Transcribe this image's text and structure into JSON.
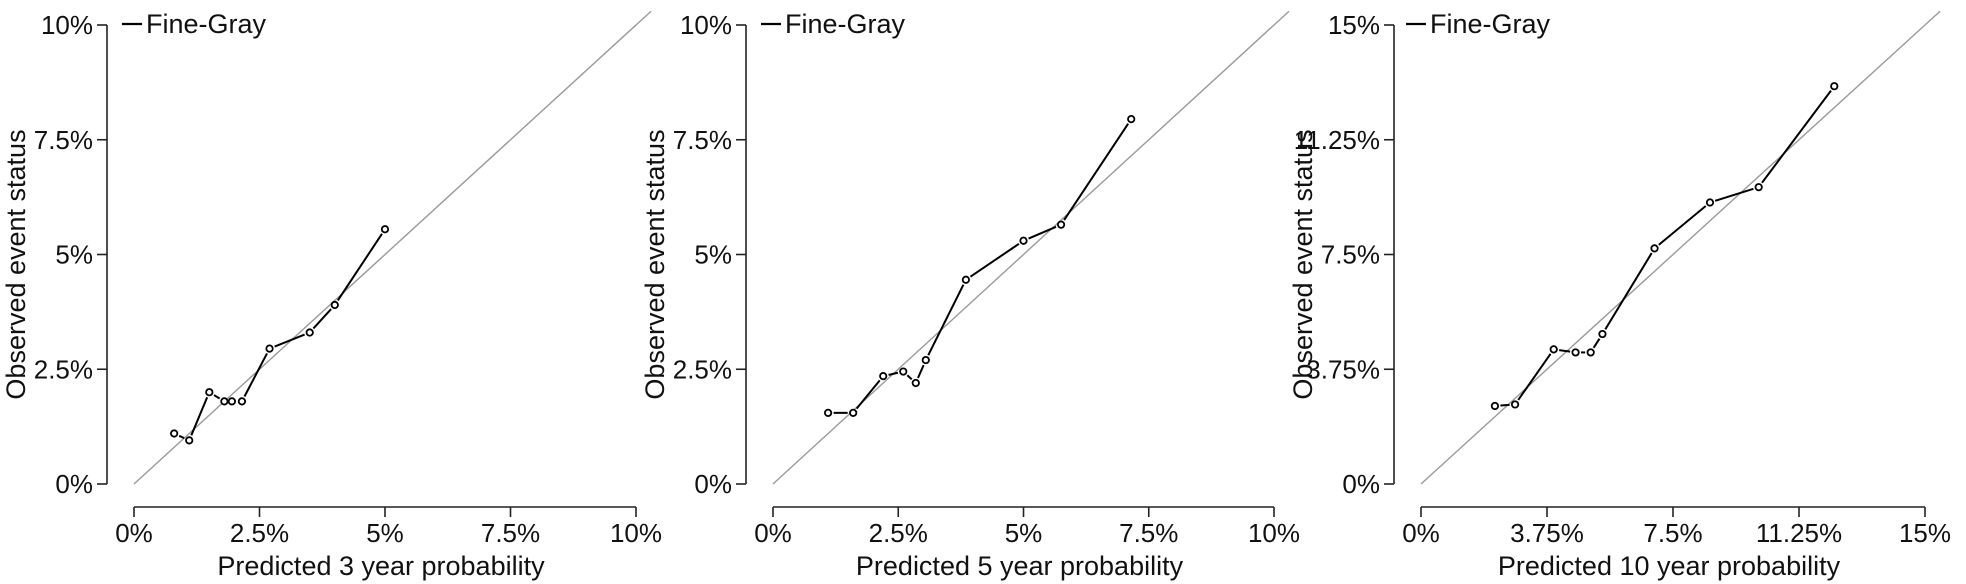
{
  "chart_data": [
    {
      "type": "scatter",
      "xlabel": "Predicted 3 year probability",
      "ylabel": "Observed event status",
      "xlim": [
        0,
        10
      ],
      "ylim": [
        0,
        10
      ],
      "xticks": [
        0,
        2.5,
        5,
        7.5,
        10
      ],
      "yticks": [
        0,
        2.5,
        5,
        7.5,
        10
      ],
      "xtick_labels": [
        "0%",
        "2.5%",
        "5%",
        "7.5%",
        "10%"
      ],
      "ytick_labels": [
        "0%",
        "2.5%",
        "5%",
        "7.5%",
        "10%"
      ],
      "legend": {
        "position": "top-left"
      },
      "reference_line": "y = x",
      "series": [
        {
          "name": "Fine-Gray",
          "x": [
            0.8,
            1.1,
            1.5,
            1.8,
            1.95,
            2.15,
            2.7,
            3.5,
            4.0,
            5.0
          ],
          "y": [
            1.1,
            0.95,
            2.0,
            1.8,
            1.8,
            1.8,
            2.95,
            3.3,
            3.9,
            5.55
          ]
        }
      ]
    },
    {
      "type": "scatter",
      "xlabel": "Predicted 5 year probability",
      "ylabel": "Observed event status",
      "xlim": [
        0,
        10
      ],
      "ylim": [
        0,
        10
      ],
      "xticks": [
        0,
        2.5,
        5,
        7.5,
        10
      ],
      "yticks": [
        0,
        2.5,
        5,
        7.5,
        10
      ],
      "xtick_labels": [
        "0%",
        "2.5%",
        "5%",
        "7.5%",
        "10%"
      ],
      "ytick_labels": [
        "0%",
        "2.5%",
        "5%",
        "7.5%",
        "10%"
      ],
      "legend": {
        "position": "top-left"
      },
      "reference_line": "y = x",
      "series": [
        {
          "name": "Fine-Gray",
          "x": [
            1.1,
            1.6,
            2.2,
            2.6,
            2.85,
            3.05,
            3.85,
            5.0,
            5.75,
            7.15
          ],
          "y": [
            1.55,
            1.55,
            2.35,
            2.45,
            2.2,
            2.7,
            4.45,
            5.3,
            5.65,
            7.95
          ]
        }
      ]
    },
    {
      "type": "scatter",
      "xlabel": "Predicted 10 year probability",
      "ylabel": "Observed event status",
      "xlim": [
        0,
        15
      ],
      "ylim": [
        0,
        15
      ],
      "xticks": [
        0,
        3.75,
        7.5,
        11.25,
        15
      ],
      "yticks": [
        0,
        3.75,
        7.5,
        11.25,
        15
      ],
      "xtick_labels": [
        "0%",
        "3.75%",
        "7.5%",
        "11.25%",
        "15%"
      ],
      "ytick_labels": [
        "0%",
        "3.75%",
        "7.5%",
        "11.25%",
        "15%"
      ],
      "legend": {
        "position": "top-left"
      },
      "reference_line": "y = x",
      "series": [
        {
          "name": "Fine-Gray",
          "x": [
            2.2,
            2.8,
            3.95,
            4.6,
            5.05,
            5.4,
            6.95,
            8.6,
            10.05,
            12.3
          ],
          "y": [
            2.55,
            2.6,
            4.4,
            4.3,
            4.3,
            4.9,
            7.7,
            9.2,
            9.7,
            13.0
          ]
        }
      ]
    }
  ]
}
